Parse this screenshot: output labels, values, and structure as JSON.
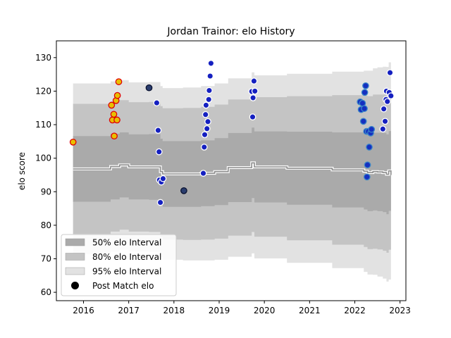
{
  "chart_data": {
    "type": "scatter",
    "title": "Jordan Trainor: elo History",
    "xlabel": "",
    "ylabel": "elo score",
    "xlim": [
      2015.4,
      2023.13
    ],
    "ylim": [
      57.5,
      135
    ],
    "x_ticks": [
      2016,
      2017,
      2018,
      2019,
      2020,
      2021,
      2022,
      2023
    ],
    "x_tick_labels": [
      "2016",
      "2017",
      "2018",
      "2019",
      "2020",
      "2021",
      "2022",
      "2023"
    ],
    "y_ticks": [
      60,
      70,
      80,
      90,
      100,
      110,
      120,
      130
    ],
    "y_tick_labels": [
      "60",
      "70",
      "80",
      "90",
      "100",
      "110",
      "120",
      "130"
    ],
    "grid": false,
    "legend": {
      "position": "lower-left",
      "entries": [
        {
          "label": "50% elo Interval",
          "color": "#aaaaaa"
        },
        {
          "label": "80% elo Interval",
          "color": "#c4c4c4"
        },
        {
          "label": "95% elo Interval",
          "color": "#e2e2e2"
        },
        {
          "label": "Post Match elo",
          "color": "#000000"
        }
      ]
    },
    "band_x": [
      2015.77,
      2016.6,
      2016.8,
      2017.0,
      2017.4,
      2017.45,
      2017.65,
      2017.7,
      2017.75,
      2018.2,
      2018.6,
      2018.9,
      2019.2,
      2019.72,
      2019.78,
      2020.5,
      2021.5,
      2022.2,
      2022.28,
      2022.4,
      2022.5,
      2022.62,
      2022.7,
      2022.75,
      2022.8
    ],
    "median": [
      96.8,
      97.5,
      98.0,
      97.4,
      97.4,
      97.4,
      97.4,
      96.0,
      95.3,
      95.3,
      95.5,
      96.0,
      97.2,
      98.6,
      97.4,
      97.0,
      96.5,
      96.1,
      95.7,
      96.0,
      95.9,
      95.7,
      95.2,
      96.2,
      95.0
    ],
    "band_50_half": [
      9.8,
      9.8,
      9.7,
      9.7,
      9.7,
      9.8,
      9.8,
      9.8,
      9.8,
      9.8,
      9.8,
      10.0,
      10.3,
      10.5,
      10.6,
      10.9,
      11.2,
      11.4,
      11.5,
      11.6,
      11.7,
      11.8,
      11.9,
      11.9,
      12.0
    ],
    "band_80_half": [
      19.4,
      19.4,
      19.3,
      19.3,
      19.3,
      19.4,
      19.4,
      19.5,
      19.6,
      19.7,
      19.8,
      20.0,
      20.3,
      20.6,
      20.8,
      21.5,
      22.3,
      22.6,
      22.8,
      23.0,
      23.1,
      23.3,
      23.4,
      23.5,
      23.5
    ],
    "band_95_half": [
      25.5,
      25.4,
      25.3,
      25.2,
      25.2,
      25.3,
      25.3,
      25.5,
      25.6,
      25.8,
      26.0,
      26.3,
      26.6,
      27.0,
      27.3,
      28.2,
      29.3,
      30.0,
      30.4,
      30.8,
      31.2,
      31.6,
      32.0,
      32.4,
      34.2
    ],
    "colors": {
      "band_50": "#aaaaaa",
      "band_80": "#c4c4c4",
      "band_95": "#e2e2e2",
      "median_line": "#8c8c8c",
      "median_glow": "#ffffff"
    },
    "series": [
      {
        "fill": "#e8c000",
        "edge": "#e00000",
        "points": [
          [
            2015.77,
            104.8
          ],
          [
            2016.62,
            115.8
          ],
          [
            2016.64,
            111.4
          ],
          [
            2016.67,
            113.1
          ],
          [
            2016.68,
            106.6
          ],
          [
            2016.72,
            117.2
          ],
          [
            2016.74,
            111.4
          ],
          [
            2016.75,
            118.7
          ],
          [
            2016.78,
            122.8
          ]
        ]
      },
      {
        "fill": "#1520c0",
        "edge": "#ffffff",
        "points": [
          [
            2017.62,
            116.5
          ],
          [
            2017.65,
            108.3
          ],
          [
            2017.67,
            101.9
          ],
          [
            2017.68,
            93.5
          ],
          [
            2017.7,
            86.8
          ],
          [
            2017.72,
            92.9
          ],
          [
            2017.76,
            93.9
          ],
          [
            2018.65,
            95.5
          ],
          [
            2018.67,
            103.3
          ],
          [
            2018.68,
            107.0
          ],
          [
            2018.7,
            113.0
          ],
          [
            2018.71,
            115.8
          ],
          [
            2018.73,
            108.8
          ],
          [
            2018.75,
            110.9
          ],
          [
            2018.77,
            117.5
          ],
          [
            2018.78,
            120.2
          ],
          [
            2018.8,
            124.5
          ],
          [
            2018.82,
            128.3
          ],
          [
            2019.72,
            119.9
          ],
          [
            2019.74,
            112.3
          ],
          [
            2019.75,
            118.0
          ],
          [
            2019.77,
            123.0
          ],
          [
            2019.79,
            120.0
          ],
          [
            2022.62,
            108.7
          ],
          [
            2022.64,
            114.7
          ],
          [
            2022.67,
            111.0
          ],
          [
            2022.69,
            117.5
          ],
          [
            2022.7,
            120.0
          ],
          [
            2022.72,
            116.9
          ],
          [
            2022.76,
            119.6
          ],
          [
            2022.78,
            125.5
          ],
          [
            2022.8,
            118.6
          ]
        ]
      },
      {
        "fill": "#1530c0",
        "edge": "#3a86c8",
        "points": [
          [
            2022.12,
            116.8
          ],
          [
            2022.14,
            114.5
          ],
          [
            2022.17,
            116.4
          ],
          [
            2022.19,
            111.0
          ],
          [
            2022.21,
            114.8
          ],
          [
            2022.22,
            119.6
          ],
          [
            2022.24,
            121.6
          ],
          [
            2022.26,
            108.0
          ],
          [
            2022.27,
            94.4
          ],
          [
            2022.28,
            98.0
          ],
          [
            2022.3,
            108.0
          ],
          [
            2022.32,
            103.3
          ],
          [
            2022.35,
            107.5
          ],
          [
            2022.37,
            108.6
          ]
        ]
      },
      {
        "fill": "#2a3d6e",
        "edge": "#0a1230",
        "points": [
          [
            2017.45,
            121.0
          ],
          [
            2018.22,
            90.3
          ]
        ]
      }
    ]
  }
}
